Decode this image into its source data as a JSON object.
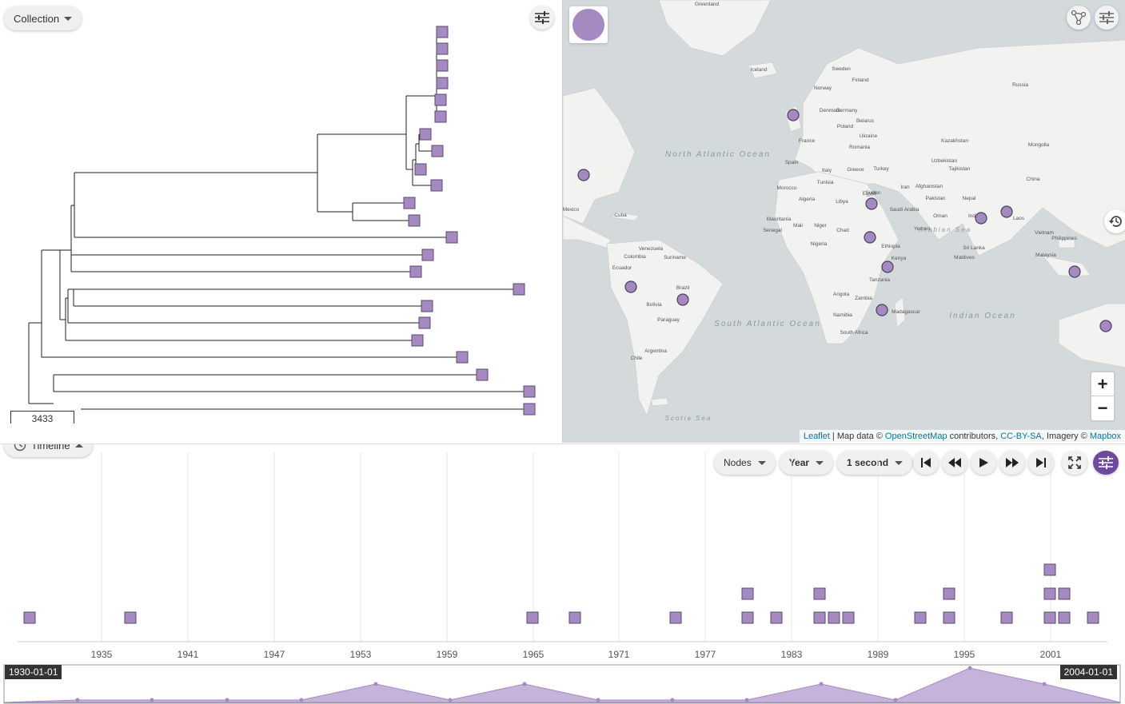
{
  "tree": {
    "collection_label": "Collection",
    "scale_label": "3433",
    "node_color": "#a48ac0"
  },
  "map": {
    "ocean_labels": [
      "North Atlantic Ocean",
      "South Atlantic Ocean",
      "Indian Ocean",
      "Arabian Sea",
      "Scotia Sea"
    ],
    "place_labels": [
      "Greenland",
      "Iceland",
      "Norway",
      "Sweden",
      "Finland",
      "Russia",
      "Kazakhstan",
      "Mongolia",
      "China",
      "Ukraine",
      "Poland",
      "France",
      "Spain",
      "Turkey",
      "Iran",
      "Afghanistan",
      "Pakistan",
      "India",
      "Nepal",
      "Laos",
      "Vietnam",
      "Philippines",
      "Malaysia",
      "Algeria",
      "Libya",
      "Egypt",
      "Mali",
      "Niger",
      "Chad",
      "Sudan",
      "Ethiopia",
      "Nigeria",
      "Kenya",
      "Tanzania",
      "Angola",
      "Zambia",
      "Namibia",
      "South Africa",
      "Madagascar",
      "Saudi Arabia",
      "Yemen",
      "Oman",
      "Brazil",
      "Bolivia",
      "Paraguay",
      "Argentina",
      "Chile",
      "Colombia",
      "Venezuela",
      "Ecuador",
      "Cuba",
      "Mexico",
      "Morocco",
      "Mauritania",
      "Senegal",
      "Sri Lanka",
      "Maldives",
      "Uzbekistan",
      "Tajikistan",
      "Belarus",
      "Romania",
      "Germany",
      "Denmark",
      "Italy",
      "Greece",
      "Suriname",
      "Tunisia"
    ],
    "attribution": {
      "leaflet": "Leaflet",
      "text1": " | Map data © ",
      "osm": "OpenStreetMap",
      "text2": " contributors, ",
      "license": "CC-BY-SA",
      "text3": ", Imagery © ",
      "provider": "Mapbox"
    },
    "zoom_in": "+",
    "zoom_out": "−"
  },
  "timeline": {
    "label": "Timeline",
    "nodes_select": "Nodes",
    "unit_select": "Year",
    "speed_select": "1 second",
    "start_date": "1930-01-01",
    "end_date": "2004-01-01",
    "axis_ticks": [
      "1935",
      "1941",
      "1947",
      "1953",
      "1959",
      "1965",
      "1971",
      "1977",
      "1983",
      "1989",
      "1995",
      "2001"
    ]
  },
  "colors": {
    "accent": "#6c4a9e",
    "node": "#a48ac0",
    "node_border": "#6b5a80"
  }
}
